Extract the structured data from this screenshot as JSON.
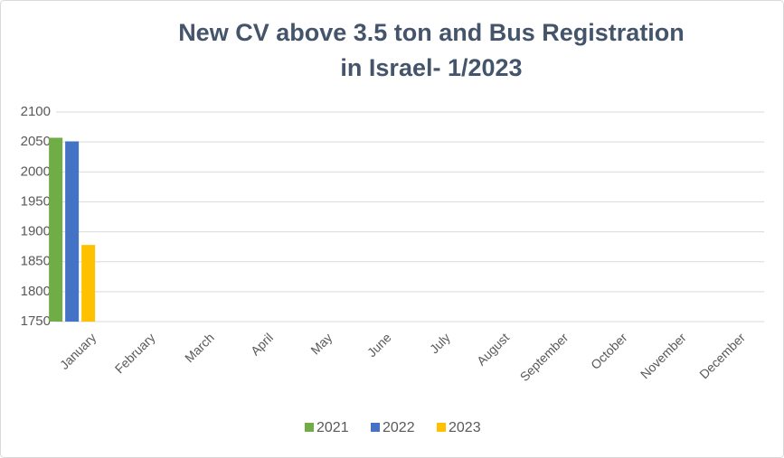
{
  "chart_data": {
    "type": "bar",
    "title": [
      "New CV above 3.5 ton and Bus Registration",
      "in Israel- 1/2023"
    ],
    "categories": [
      "January",
      "February",
      "March",
      "April",
      "May",
      "June",
      "July",
      "August",
      "September",
      "October",
      "November",
      "December"
    ],
    "series": [
      {
        "name": "2021",
        "color": "#70ad47",
        "values": [
          2057,
          null,
          null,
          null,
          null,
          null,
          null,
          null,
          null,
          null,
          null,
          null
        ]
      },
      {
        "name": "2022",
        "color": "#4472c4",
        "values": [
          2051,
          null,
          null,
          null,
          null,
          null,
          null,
          null,
          null,
          null,
          null,
          null
        ]
      },
      {
        "name": "2023",
        "color": "#ffc000",
        "values": [
          1878,
          null,
          null,
          null,
          null,
          null,
          null,
          null,
          null,
          null,
          null,
          null
        ]
      }
    ],
    "ylim": [
      1750,
      2100
    ],
    "yticks": [
      1750,
      1800,
      1850,
      1900,
      1950,
      2000,
      2050,
      2100
    ],
    "grid": true,
    "legend": "bottom"
  }
}
